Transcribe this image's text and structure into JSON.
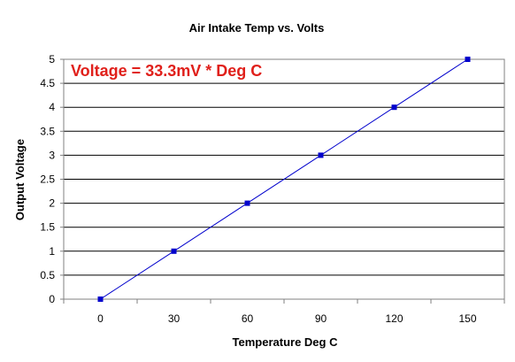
{
  "chart_data": {
    "type": "line",
    "title": "Air Intake Temp vs. Volts",
    "xlabel": "Temperature Deg C",
    "ylabel": "Output Voltage",
    "annotation": "Voltage = 33.3mV * Deg C",
    "x_ticks": [
      "0",
      "30",
      "60",
      "90",
      "120",
      "150"
    ],
    "y_ticks": [
      "0",
      "0.5",
      "1",
      "1.5",
      "2",
      "2.5",
      "3",
      "3.5",
      "4",
      "4.5",
      "5"
    ],
    "xlim": [
      -15,
      165
    ],
    "ylim": [
      0,
      5
    ],
    "grid": true,
    "legend": "none",
    "series": [
      {
        "x": [
          0,
          30,
          60,
          90,
          120,
          150
        ],
        "y": [
          0,
          1,
          2,
          3,
          4,
          5
        ]
      }
    ],
    "colors": {
      "series": "#0000cc",
      "annotation": "#e0201b",
      "grid": "#000000",
      "axis": "#808080"
    }
  }
}
